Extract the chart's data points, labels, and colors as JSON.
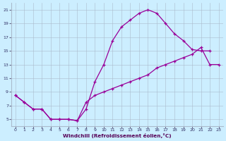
{
  "xlabel": "Windchill (Refroidissement éolien,°C)",
  "bg_color": "#cceeff",
  "line_color": "#990099",
  "xlim": [
    -0.5,
    23.5
  ],
  "ylim": [
    4.0,
    22.0
  ],
  "xticks": [
    0,
    1,
    2,
    3,
    4,
    5,
    6,
    7,
    8,
    9,
    10,
    11,
    12,
    13,
    14,
    15,
    16,
    17,
    18,
    19,
    20,
    21,
    22,
    23
  ],
  "yticks": [
    5,
    7,
    9,
    11,
    13,
    15,
    17,
    19,
    21
  ],
  "curve1_x": [
    0,
    1,
    2,
    3,
    4,
    5,
    6,
    7,
    8,
    9,
    10,
    11,
    12,
    13,
    14,
    15,
    16,
    17,
    18,
    19,
    20,
    21,
    22
  ],
  "curve1_y": [
    8.5,
    7.5,
    6.5,
    6.5,
    5.0,
    5.0,
    5.0,
    4.8,
    6.5,
    10.5,
    13.0,
    16.5,
    18.5,
    19.5,
    20.5,
    21.0,
    20.5,
    19.0,
    17.5,
    16.5,
    15.2,
    15.0,
    15.0
  ],
  "curve2_x": [
    0,
    1,
    2,
    3,
    4,
    5,
    6,
    7,
    8,
    9,
    10,
    11,
    12,
    13,
    14,
    15,
    16,
    17,
    18,
    19,
    20,
    21,
    22,
    23
  ],
  "curve2_y": [
    8.5,
    7.5,
    6.5,
    6.5,
    5.0,
    5.0,
    5.0,
    4.8,
    7.5,
    8.5,
    9.0,
    9.5,
    10.0,
    10.5,
    11.0,
    11.5,
    12.5,
    13.0,
    13.5,
    14.0,
    14.5,
    15.5,
    13.0,
    13.0
  ]
}
